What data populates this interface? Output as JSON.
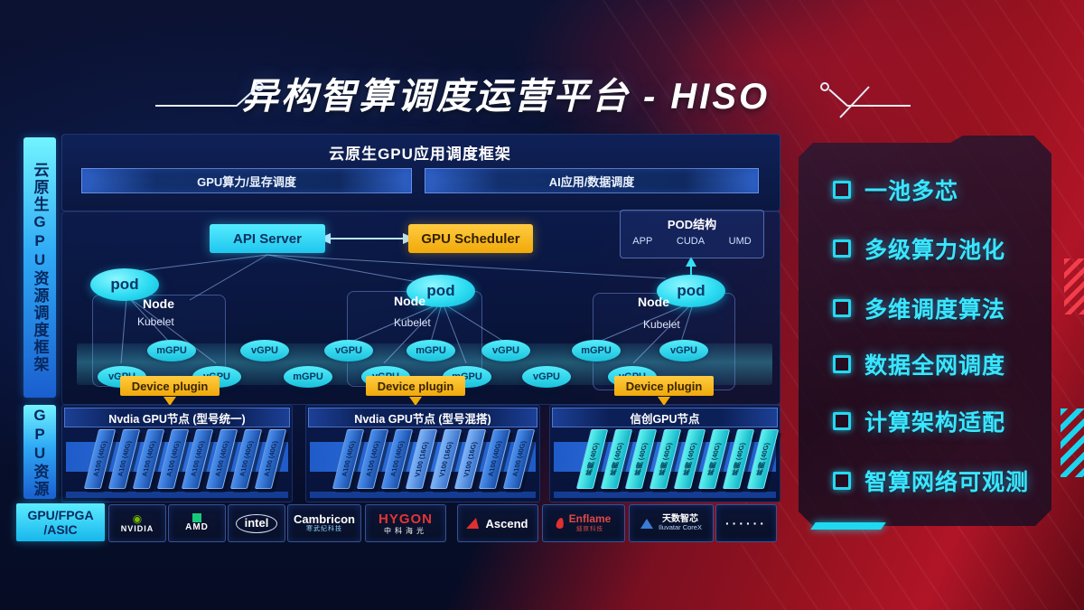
{
  "title": "异构智算调度运营平台 - HISO",
  "left_rails": {
    "top": "云原生GPU资源调度框架",
    "bottom": "GPU资源"
  },
  "app_framework": {
    "title": "云原生GPU应用调度框架",
    "bars": [
      "GPU算力/显存调度",
      "AI应用/数据调度"
    ]
  },
  "control_plane": {
    "api_server": "API Server",
    "gpu_scheduler": "GPU Scheduler"
  },
  "pod_structure": {
    "title": "POD结构",
    "layers": [
      "APP",
      "CUDA",
      "UMD"
    ]
  },
  "worker_nodes": {
    "pod_label": "pod",
    "node_label": "Node",
    "kubelet_label": "Kubelet",
    "device_plugin_label": "Device plugin"
  },
  "gpu_band": {
    "items": [
      "vGPU",
      "mGPU",
      "vGPU",
      "vGPU",
      "mGPU",
      "vGPU",
      "vGPU",
      "mGPU",
      "mGPU",
      "vGPU",
      "vGPU",
      "mGPU",
      "vGPU",
      "vGPU"
    ]
  },
  "gpu_groups": [
    {
      "title": "Nvdia GPU节点 (型号统一)",
      "style": "blue",
      "cards": [
        "A100 (40G)",
        "A100 (40G)",
        "A100 (40G)",
        "A100 (40G)",
        "A100 (40G)",
        "A100 (40G)",
        "A100 (40G)",
        "A100 (40G)"
      ]
    },
    {
      "title": "Nvdia GPU节点 (型号混搭)",
      "style": "blue",
      "cards": [
        "A100 (40G)",
        "A100 (40G)",
        "A100 (40G)",
        "V100 (16G)",
        "V100 (16G)",
        "V100 (16G)",
        "A100 (40G)",
        "A100 (40G)"
      ]
    },
    {
      "title": "信创GPU节点",
      "style": "cyan",
      "cards": [
        "昇腾 (40G)",
        "昇腾 (40G)",
        "昇腾 (40G)",
        "昇腾 (40G)",
        "昇腾 (40G)",
        "昇腾 (40G)",
        "昇腾 (40G)",
        "昇腾 (40G)"
      ]
    }
  ],
  "vendor_strip": {
    "category": {
      "line1": "GPU/FPGA",
      "line2": "/ASIC"
    },
    "vendors": [
      {
        "name": "NVIDIA",
        "sub": ""
      },
      {
        "name": "AMD",
        "sub": ""
      },
      {
        "name": "intel",
        "sub": ""
      },
      {
        "name": "Cambricon",
        "sub": "寒武纪科技"
      },
      {
        "name": "HYGON",
        "sub": "中科海光"
      },
      {
        "name": "Ascend",
        "sub": ""
      },
      {
        "name": "Enflame",
        "sub": "燧原科技"
      },
      {
        "name": "天数智芯",
        "sub": "Iluvatar CoreX"
      },
      {
        "name": "······",
        "sub": ""
      }
    ]
  },
  "features": [
    "一池多芯",
    "多级算力池化",
    "多维调度算法",
    "数据全网调度",
    "计算架构适配",
    "智算网络可观测"
  ],
  "colors": {
    "accent_cyan": "#35e4ff",
    "accent_gold": "#f5b718",
    "nvidia_green": "#76b900",
    "card_blue": "#2e7ce8",
    "red_bg": "#97121f",
    "navy_bg": "#0b1232"
  }
}
